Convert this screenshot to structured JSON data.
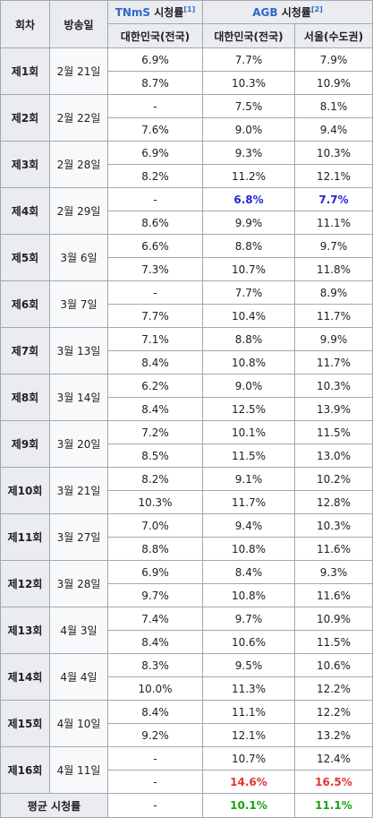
{
  "headers": {
    "episode": "회차",
    "air_date": "방송일",
    "tnms_label": "TNmS",
    "tnms_suffix": " 시청률",
    "tnms_ref": "[1]",
    "agb_label": "AGB",
    "agb_suffix": " 시청률",
    "agb_ref": "[2]",
    "tnms_nation": "대한민국(전국)",
    "agb_nation": "대한민국(전국)",
    "agb_seoul": "서울(수도권)"
  },
  "episodes": [
    {
      "ep": "제1회",
      "date": "2월 21일",
      "rows": [
        [
          "6.9%",
          "7.7%",
          "7.9%"
        ],
        [
          "8.7%",
          "10.3%",
          "10.9%"
        ]
      ]
    },
    {
      "ep": "제2회",
      "date": "2월 22일",
      "rows": [
        [
          "-",
          "7.5%",
          "8.1%"
        ],
        [
          "7.6%",
          "9.0%",
          "9.4%"
        ]
      ]
    },
    {
      "ep": "제3회",
      "date": "2월 28일",
      "rows": [
        [
          "6.9%",
          "9.3%",
          "10.3%"
        ],
        [
          "8.2%",
          "11.2%",
          "12.1%"
        ]
      ]
    },
    {
      "ep": "제4회",
      "date": "2월 29일",
      "rows": [
        [
          "-",
          "6.8%",
          "7.7%"
        ],
        [
          "8.6%",
          "9.9%",
          "11.1%"
        ]
      ]
    },
    {
      "ep": "제5회",
      "date": "3월 6일",
      "rows": [
        [
          "6.6%",
          "8.8%",
          "9.7%"
        ],
        [
          "7.3%",
          "10.7%",
          "11.8%"
        ]
      ]
    },
    {
      "ep": "제6회",
      "date": "3월 7일",
      "rows": [
        [
          "-",
          "7.7%",
          "8.9%"
        ],
        [
          "7.7%",
          "10.4%",
          "11.7%"
        ]
      ]
    },
    {
      "ep": "제7회",
      "date": "3월 13일",
      "rows": [
        [
          "7.1%",
          "8.8%",
          "9.9%"
        ],
        [
          "8.4%",
          "10.8%",
          "11.7%"
        ]
      ]
    },
    {
      "ep": "제8회",
      "date": "3월 14일",
      "rows": [
        [
          "6.2%",
          "9.0%",
          "10.3%"
        ],
        [
          "8.4%",
          "12.5%",
          "13.9%"
        ]
      ]
    },
    {
      "ep": "제9회",
      "date": "3월 20일",
      "rows": [
        [
          "7.2%",
          "10.1%",
          "11.5%"
        ],
        [
          "8.5%",
          "11.5%",
          "13.0%"
        ]
      ]
    },
    {
      "ep": "제10회",
      "date": "3월 21일",
      "rows": [
        [
          "8.2%",
          "9.1%",
          "10.2%"
        ],
        [
          "10.3%",
          "11.7%",
          "12.8%"
        ]
      ]
    },
    {
      "ep": "제11회",
      "date": "3월 27일",
      "rows": [
        [
          "7.0%",
          "9.4%",
          "10.3%"
        ],
        [
          "8.8%",
          "10.8%",
          "11.6%"
        ]
      ]
    },
    {
      "ep": "제12회",
      "date": "3월 28일",
      "rows": [
        [
          "6.9%",
          "8.4%",
          "9.3%"
        ],
        [
          "9.7%",
          "10.8%",
          "11.6%"
        ]
      ]
    },
    {
      "ep": "제13회",
      "date": "4월 3일",
      "rows": [
        [
          "7.4%",
          "9.7%",
          "10.9%"
        ],
        [
          "8.4%",
          "10.6%",
          "11.5%"
        ]
      ]
    },
    {
      "ep": "제14회",
      "date": "4월 4일",
      "rows": [
        [
          "8.3%",
          "9.5%",
          "10.6%"
        ],
        [
          "10.0%",
          "11.3%",
          "12.2%"
        ]
      ]
    },
    {
      "ep": "제15회",
      "date": "4월 10일",
      "rows": [
        [
          "8.4%",
          "11.1%",
          "12.2%"
        ],
        [
          "9.2%",
          "12.1%",
          "13.2%"
        ]
      ]
    },
    {
      "ep": "제16회",
      "date": "4월 11일",
      "rows": [
        [
          "-",
          "10.7%",
          "12.4%"
        ],
        [
          "-",
          "14.6%",
          "16.5%"
        ]
      ]
    }
  ],
  "highlights": {
    "low_color": "#2727d6",
    "high_color": "#e33434",
    "avg_color": "#14a314"
  },
  "average": {
    "label": "평균 시청률",
    "tnms": "-",
    "agb_nation": "10.1%",
    "agb_seoul": "11.1%"
  }
}
